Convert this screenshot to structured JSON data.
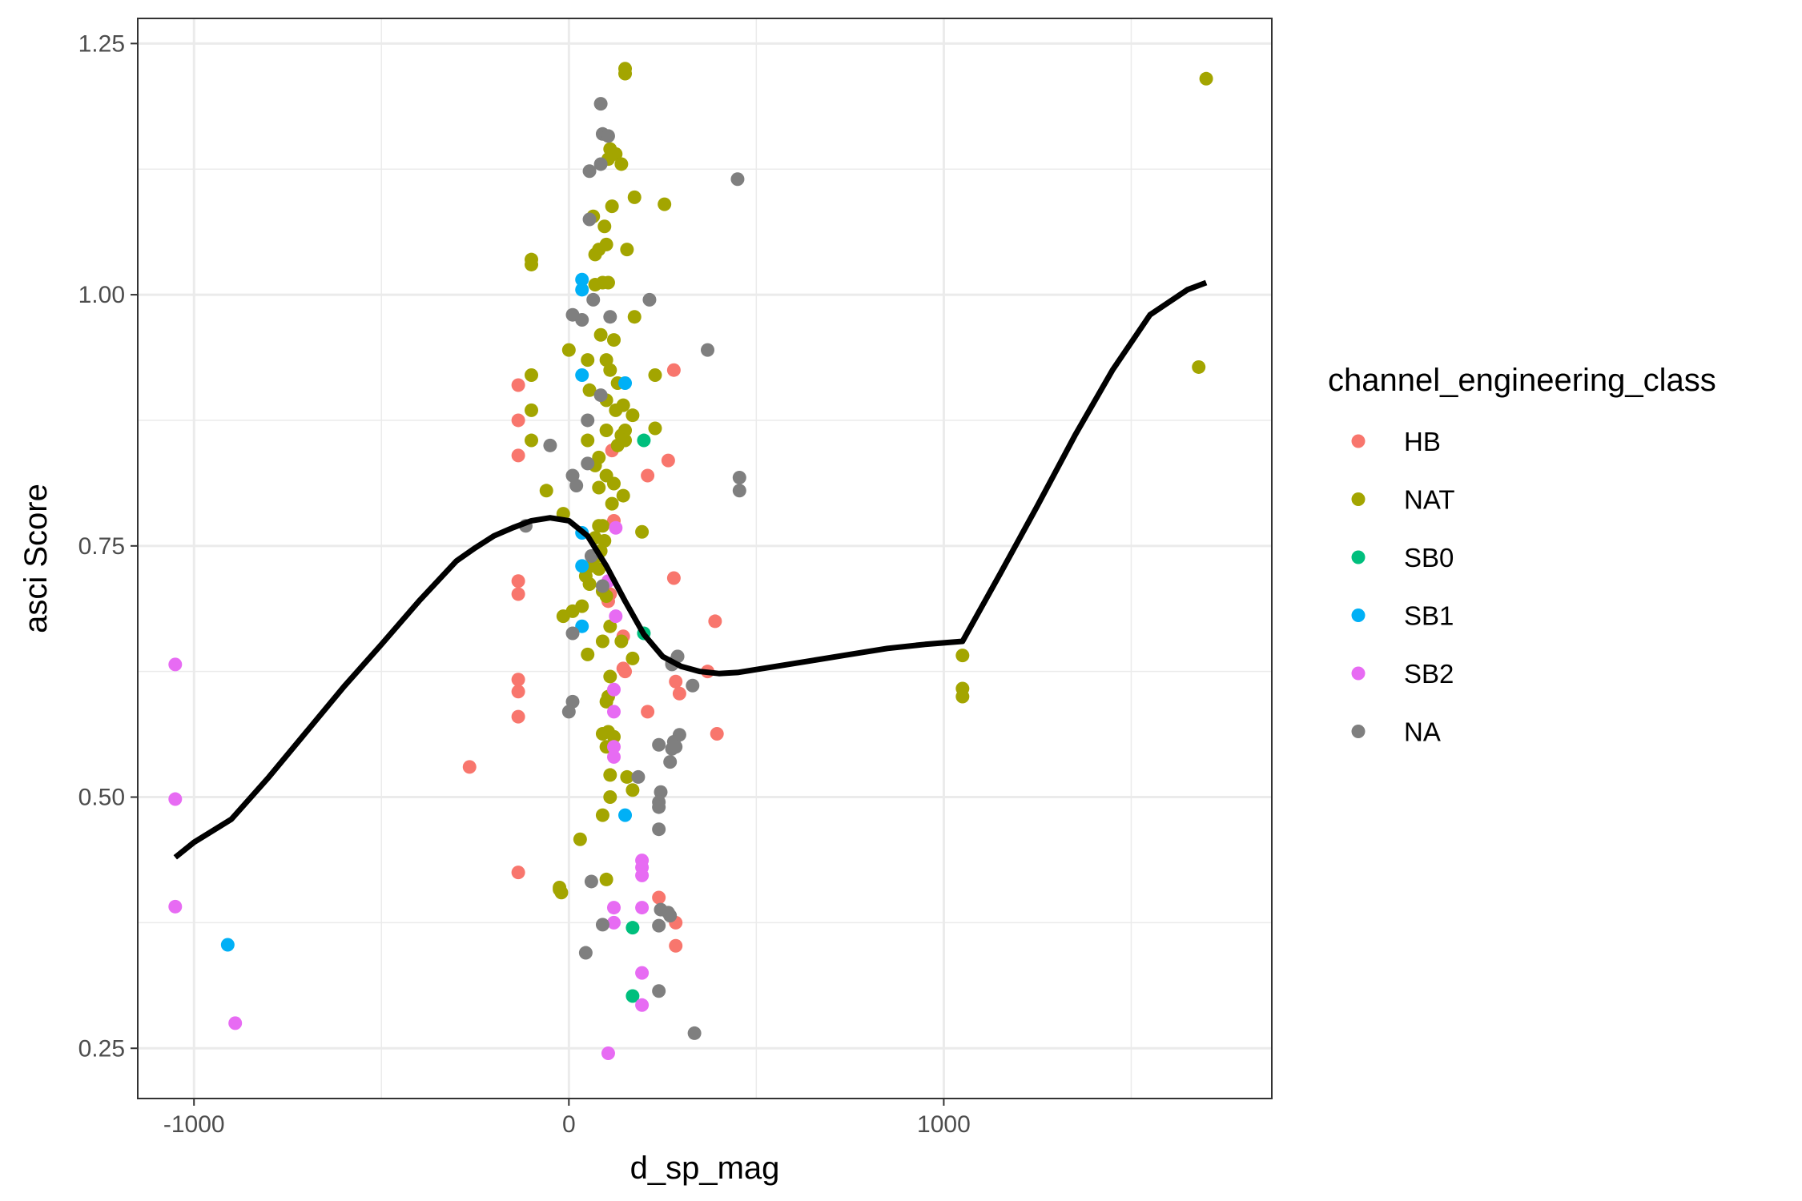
{
  "chart_data": {
    "type": "scatter",
    "title": "",
    "xlabel": "d_sp_mag",
    "ylabel": "asci Score",
    "xlim": [
      -1150,
      1875
    ],
    "ylim": [
      0.2,
      1.275
    ],
    "x_ticks": [
      -1000,
      0,
      1000
    ],
    "x_tick_labels": [
      "-1000",
      "0",
      "1000"
    ],
    "y_ticks": [
      0.25,
      0.5,
      0.75,
      1.0,
      1.25
    ],
    "y_tick_labels": [
      "0.25",
      "0.50",
      "0.75",
      "1.00",
      "1.25"
    ],
    "x_minor_ticks": [
      -500,
      500,
      1500
    ],
    "y_minor_ticks": [
      0.375,
      0.625,
      0.875,
      1.125
    ],
    "grid": true,
    "legend": {
      "title": "channel_engineering_class",
      "placement": "right",
      "entries": [
        {
          "label": "HB",
          "color": "#F8766D"
        },
        {
          "label": "NAT",
          "color": "#A3A500"
        },
        {
          "label": "SB0",
          "color": "#00BF7D"
        },
        {
          "label": "SB1",
          "color": "#00B0F6"
        },
        {
          "label": "SB2",
          "color": "#E76BF3"
        },
        {
          "label": "NA",
          "color": "#7F7F7F"
        }
      ]
    },
    "series": [
      {
        "name": "HB",
        "color": "#F8766D",
        "points": [
          [
            -135,
            0.91
          ],
          [
            -135,
            0.875
          ],
          [
            -135,
            0.84
          ],
          [
            -135,
            0.715
          ],
          [
            -135,
            0.702
          ],
          [
            -135,
            0.617
          ],
          [
            -135,
            0.605
          ],
          [
            -135,
            0.58
          ],
          [
            -135,
            0.425
          ],
          [
            -265,
            0.53
          ],
          [
            115,
            0.845
          ],
          [
            120,
            0.775
          ],
          [
            105,
            0.695
          ],
          [
            145,
            0.66
          ],
          [
            145,
            0.628
          ],
          [
            150,
            0.625
          ],
          [
            210,
            0.82
          ],
          [
            265,
            0.835
          ],
          [
            280,
            0.925
          ],
          [
            280,
            0.718
          ],
          [
            285,
            0.615
          ],
          [
            295,
            0.603
          ],
          [
            210,
            0.585
          ],
          [
            390,
            0.675
          ],
          [
            370,
            0.625
          ],
          [
            395,
            0.563
          ],
          [
            240,
            0.4
          ],
          [
            285,
            0.375
          ],
          [
            285,
            0.352
          ],
          [
            110,
            0.702
          ]
        ]
      },
      {
        "name": "NAT",
        "color": "#A3A500",
        "points": [
          [
            150,
            1.225
          ],
          [
            150,
            1.22
          ],
          [
            1700,
            1.215
          ],
          [
            1680,
            0.928
          ],
          [
            1050,
            0.641
          ],
          [
            1050,
            0.608
          ],
          [
            1050,
            0.6
          ],
          [
            110,
            1.145
          ],
          [
            125,
            1.14
          ],
          [
            140,
            1.13
          ],
          [
            105,
            1.135
          ],
          [
            175,
            1.097
          ],
          [
            255,
            1.09
          ],
          [
            115,
            1.088
          ],
          [
            65,
            1.078
          ],
          [
            95,
            1.068
          ],
          [
            80,
            1.045
          ],
          [
            100,
            1.05
          ],
          [
            155,
            1.045
          ],
          [
            70,
            1.04
          ],
          [
            90,
            1.012
          ],
          [
            105,
            1.012
          ],
          [
            70,
            1.01
          ],
          [
            -100,
            1.035
          ],
          [
            -100,
            1.03
          ],
          [
            120,
            0.955
          ],
          [
            85,
            0.96
          ],
          [
            0,
            0.945
          ],
          [
            50,
            0.935
          ],
          [
            100,
            0.935
          ],
          [
            110,
            0.925
          ],
          [
            230,
            0.92
          ],
          [
            -100,
            0.92
          ],
          [
            175,
            0.978
          ],
          [
            130,
            0.912
          ],
          [
            55,
            0.905
          ],
          [
            100,
            0.895
          ],
          [
            145,
            0.89
          ],
          [
            125,
            0.885
          ],
          [
            -100,
            0.885
          ],
          [
            170,
            0.88
          ],
          [
            100,
            0.865
          ],
          [
            150,
            0.865
          ],
          [
            230,
            0.867
          ],
          [
            50,
            0.855
          ],
          [
            140,
            0.86
          ],
          [
            -100,
            0.855
          ],
          [
            130,
            0.85
          ],
          [
            150,
            0.855
          ],
          [
            80,
            0.838
          ],
          [
            70,
            0.83
          ],
          [
            100,
            0.82
          ],
          [
            120,
            0.812
          ],
          [
            80,
            0.808
          ],
          [
            -60,
            0.805
          ],
          [
            145,
            0.8
          ],
          [
            115,
            0.792
          ],
          [
            195,
            0.764
          ],
          [
            90,
            0.77
          ],
          [
            -15,
            0.782
          ],
          [
            80,
            0.77
          ],
          [
            70,
            0.758
          ],
          [
            95,
            0.755
          ],
          [
            85,
            0.745
          ],
          [
            75,
            0.74
          ],
          [
            60,
            0.73
          ],
          [
            80,
            0.727
          ],
          [
            45,
            0.72
          ],
          [
            55,
            0.712
          ],
          [
            90,
            0.705
          ],
          [
            100,
            0.7
          ],
          [
            35,
            0.69
          ],
          [
            10,
            0.685
          ],
          [
            -15,
            0.68
          ],
          [
            110,
            0.67
          ],
          [
            90,
            0.655
          ],
          [
            140,
            0.655
          ],
          [
            170,
            0.638
          ],
          [
            50,
            0.642
          ],
          [
            110,
            0.62
          ],
          [
            105,
            0.6
          ],
          [
            100,
            0.595
          ],
          [
            90,
            0.563
          ],
          [
            105,
            0.565
          ],
          [
            120,
            0.56
          ],
          [
            100,
            0.55
          ],
          [
            110,
            0.522
          ],
          [
            155,
            0.52
          ],
          [
            170,
            0.507
          ],
          [
            110,
            0.5
          ],
          [
            90,
            0.482
          ],
          [
            30,
            0.458
          ],
          [
            100,
            0.418
          ],
          [
            -25,
            0.41
          ],
          [
            -20,
            0.405
          ],
          [
            -25,
            0.408
          ]
        ]
      },
      {
        "name": "SB0",
        "color": "#00BF7D",
        "points": [
          [
            200,
            0.855
          ],
          [
            200,
            0.663
          ],
          [
            170,
            0.37
          ],
          [
            170,
            0.302
          ]
        ]
      },
      {
        "name": "SB1",
        "color": "#00B0F6",
        "points": [
          [
            35,
            1.015
          ],
          [
            35,
            1.005
          ],
          [
            35,
            0.92
          ],
          [
            150,
            0.912
          ],
          [
            35,
            0.763
          ],
          [
            35,
            0.73
          ],
          [
            35,
            0.67
          ],
          [
            150,
            0.482
          ],
          [
            -910,
            0.353
          ]
        ]
      },
      {
        "name": "SB2",
        "color": "#E76BF3",
        "points": [
          [
            -1050,
            0.632
          ],
          [
            -1050,
            0.498
          ],
          [
            -1050,
            0.391
          ],
          [
            -890,
            0.275
          ],
          [
            125,
            0.768
          ],
          [
            105,
            0.715
          ],
          [
            125,
            0.68
          ],
          [
            120,
            0.607
          ],
          [
            120,
            0.585
          ],
          [
            120,
            0.55
          ],
          [
            120,
            0.54
          ],
          [
            195,
            0.437
          ],
          [
            195,
            0.43
          ],
          [
            195,
            0.422
          ],
          [
            195,
            0.39
          ],
          [
            120,
            0.39
          ],
          [
            120,
            0.375
          ],
          [
            195,
            0.325
          ],
          [
            195,
            0.293
          ],
          [
            105,
            0.245
          ]
        ]
      },
      {
        "name": "NA",
        "color": "#7F7F7F",
        "points": [
          [
            85,
            1.19
          ],
          [
            90,
            1.16
          ],
          [
            105,
            1.158
          ],
          [
            55,
            1.123
          ],
          [
            85,
            1.13
          ],
          [
            450,
            1.115
          ],
          [
            55,
            1.075
          ],
          [
            65,
            0.995
          ],
          [
            215,
            0.995
          ],
          [
            10,
            0.98
          ],
          [
            35,
            0.975
          ],
          [
            110,
            0.978
          ],
          [
            370,
            0.945
          ],
          [
            85,
            0.9
          ],
          [
            50,
            0.875
          ],
          [
            -50,
            0.85
          ],
          [
            50,
            0.832
          ],
          [
            10,
            0.82
          ],
          [
            455,
            0.818
          ],
          [
            20,
            0.81
          ],
          [
            455,
            0.805
          ],
          [
            -115,
            0.77
          ],
          [
            60,
            0.74
          ],
          [
            90,
            0.71
          ],
          [
            10,
            0.663
          ],
          [
            330,
            0.611
          ],
          [
            290,
            0.64
          ],
          [
            275,
            0.633
          ],
          [
            275,
            0.632
          ],
          [
            10,
            0.595
          ],
          [
            0,
            0.585
          ],
          [
            295,
            0.562
          ],
          [
            280,
            0.555
          ],
          [
            275,
            0.548
          ],
          [
            285,
            0.55
          ],
          [
            240,
            0.552
          ],
          [
            270,
            0.535
          ],
          [
            185,
            0.52
          ],
          [
            245,
            0.505
          ],
          [
            240,
            0.495
          ],
          [
            240,
            0.49
          ],
          [
            240,
            0.468
          ],
          [
            60,
            0.416
          ],
          [
            245,
            0.388
          ],
          [
            265,
            0.385
          ],
          [
            270,
            0.382
          ],
          [
            240,
            0.372
          ],
          [
            90,
            0.373
          ],
          [
            45,
            0.345
          ],
          [
            240,
            0.307
          ],
          [
            335,
            0.265
          ]
        ]
      }
    ],
    "smooth_line": {
      "color": "#000000",
      "x": [
        -1050,
        -1000,
        -900,
        -800,
        -700,
        -600,
        -500,
        -400,
        -300,
        -250,
        -200,
        -150,
        -100,
        -50,
        0,
        50,
        100,
        150,
        200,
        250,
        300,
        350,
        400,
        450,
        550,
        650,
        750,
        850,
        950,
        1050,
        1150,
        1250,
        1350,
        1450,
        1550,
        1650,
        1700
      ],
      "y": [
        0.44,
        0.455,
        0.478,
        0.52,
        0.565,
        0.61,
        0.652,
        0.695,
        0.735,
        0.748,
        0.76,
        0.768,
        0.775,
        0.778,
        0.775,
        0.76,
        0.73,
        0.695,
        0.662,
        0.64,
        0.63,
        0.625,
        0.623,
        0.624,
        0.63,
        0.636,
        0.642,
        0.648,
        0.652,
        0.655,
        0.722,
        0.79,
        0.86,
        0.925,
        0.98,
        1.005,
        1.012
      ]
    }
  }
}
